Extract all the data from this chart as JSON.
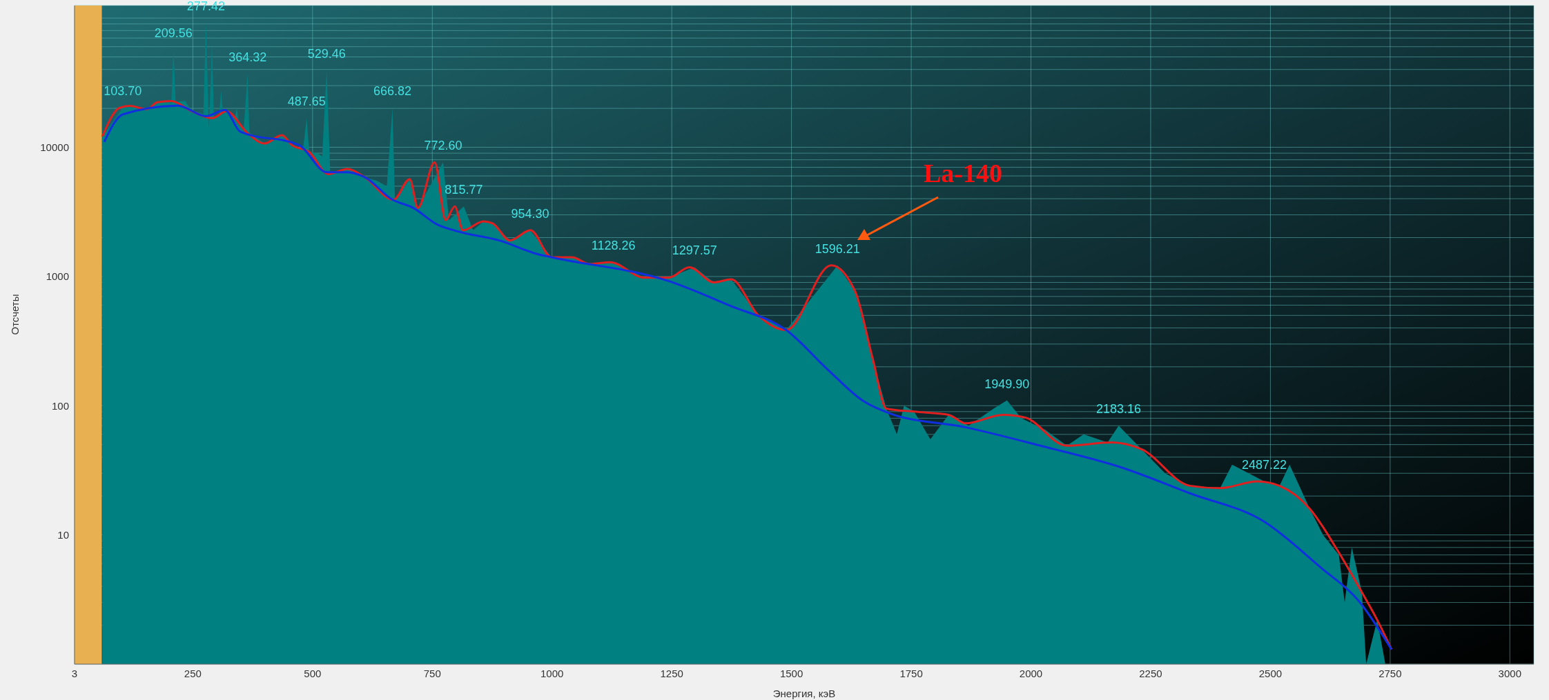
{
  "chart_data": {
    "type": "area",
    "xlabel": "Энергия, кэВ",
    "ylabel": "Отсчеты",
    "log": "y",
    "grid": true,
    "xlim": [
      3,
      3050
    ],
    "xticks": [
      3,
      250,
      500,
      750,
      1000,
      1250,
      1500,
      1750,
      2000,
      2250,
      2500,
      2750,
      3000
    ],
    "ylim": [
      1,
      125000
    ],
    "yticks": [
      {
        "value": 2,
        "label": null
      },
      {
        "value": 3,
        "label": null
      },
      {
        "value": 4,
        "label": null
      },
      {
        "value": 5,
        "label": null
      },
      {
        "value": 6,
        "label": null
      },
      {
        "value": 7,
        "label": null
      },
      {
        "value": 8,
        "label": null
      },
      {
        "value": 9,
        "label": null
      },
      10,
      {
        "value": 20,
        "label": null
      },
      {
        "value": 30,
        "label": null
      },
      {
        "value": 40,
        "label": null
      },
      {
        "value": 50,
        "label": null
      },
      {
        "value": 60,
        "label": null
      },
      {
        "value": 70,
        "label": null
      },
      {
        "value": 80,
        "label": null
      },
      {
        "value": 90,
        "label": null
      },
      100,
      {
        "value": 200,
        "label": null
      },
      {
        "value": 300,
        "label": null
      },
      {
        "value": 400,
        "label": null
      },
      {
        "value": 500,
        "label": null
      },
      {
        "value": 600,
        "label": null
      },
      {
        "value": 700,
        "label": null
      },
      {
        "value": 800,
        "label": null
      },
      {
        "value": 900,
        "label": null
      },
      1000,
      {
        "value": 2000,
        "label": null
      },
      {
        "value": 3000,
        "label": null
      },
      {
        "value": 4000,
        "label": null
      },
      {
        "value": 5000,
        "label": null
      },
      {
        "value": 6000,
        "label": null
      },
      {
        "value": 7000,
        "label": null
      },
      {
        "value": 8000,
        "label": null
      },
      {
        "value": 9000,
        "label": null
      },
      10000,
      {
        "value": 20000,
        "label": null
      },
      {
        "value": 30000,
        "label": null
      },
      {
        "value": 40000,
        "label": null
      },
      {
        "value": 50000,
        "label": null
      },
      {
        "value": 60000,
        "label": null
      },
      {
        "value": 70000,
        "label": null
      },
      {
        "value": 80000,
        "label": null
      },
      {
        "value": 90000,
        "label": null
      },
      {
        "value": 100000,
        "label": null
      }
    ],
    "bands": [
      {
        "axis": "x",
        "from": 3,
        "to": 60,
        "color": "#e8b050"
      }
    ],
    "series": [
      {
        "color": "#008080",
        "x": [
          61,
          103.7,
          118,
          154,
          176,
          200,
          205,
          209.56,
          214,
          234,
          248,
          265,
          272,
          277.42,
          283.5,
          290,
          294,
          297,
          305,
          309,
          313,
          320,
          338,
          342,
          346,
          356,
          364.32,
          368,
          400,
          436,
          457,
          470,
          480,
          487.65,
          493,
          510,
          520,
          529.46,
          537,
          573,
          609,
          635,
          655,
          666.82,
          672,
          703,
          720,
          772.6,
          785,
          815.77,
          835,
          857,
          876,
          912,
          954.3,
          999,
          1042,
          1078,
          1128.26,
          1193,
          1244,
          1297.57,
          1338,
          1374,
          1431,
          1489,
          1596.21,
          1633,
          1670,
          1698,
          1720,
          1735,
          1756,
          1790,
          1828,
          1870,
          1922,
          1949.9,
          1980,
          2030,
          2075,
          2110,
          2160,
          2183.16,
          2231,
          2280,
          2332,
          2395,
          2420,
          2487.22,
          2519,
          2540,
          2582,
          2610,
          2643,
          2655,
          2670,
          2691,
          2700,
          2723,
          2740
        ],
        "values": [
          12100,
          20200,
          20900,
          19700,
          22300,
          22800,
          22000,
          56600,
          22500,
          22800,
          19000,
          18500,
          18000,
          91800,
          14000,
          63800,
          17000,
          16800,
          18000,
          27300,
          18500,
          19000,
          17000,
          20200,
          15000,
          13500,
          37000,
          13000,
          10700,
          12400,
          10400,
          10000,
          9600,
          16800,
          9200,
          9000,
          8500,
          39300,
          6200,
          6800,
          5870,
          5500,
          5000,
          20200,
          3930,
          5660,
          3400,
          7660,
          2730,
          3490,
          2280,
          2670,
          2580,
          1900,
          2280,
          1410,
          1410,
          1250,
          1290,
          980,
          980,
          1180,
          900,
          950,
          500,
          385,
          1220,
          765,
          228,
          95,
          60,
          100,
          90,
          55,
          85,
          70,
          95,
          110,
          80,
          65,
          49,
          60,
          52,
          70,
          46,
          30,
          24,
          23,
          35,
          26,
          24,
          35,
          16,
          10,
          7,
          3,
          8,
          3.6,
          1,
          2.2,
          1
        ]
      },
      {
        "type": "line",
        "color": "#e02020",
        "x": [
          61,
          97,
          118,
          154,
          176,
          205,
          248,
          291,
          320,
          364,
          400,
          436,
          457,
          493,
          533,
          573,
          609,
          669,
          703,
          720,
          755,
          778,
          797,
          814,
          857,
          876,
          912,
          955,
          999,
          1042,
          1078,
          1121,
          1193,
          1244,
          1287,
          1338,
          1374,
          1431,
          1489,
          1583,
          1633,
          1670,
          1698,
          1756,
          1828,
          1864,
          1942,
          1988,
          2075,
          2169,
          2231,
          2332,
          2395,
          2473,
          2519,
          2582,
          2643,
          2691,
          2723,
          2753
        ],
        "values": [
          12100,
          20200,
          20900,
          19700,
          22300,
          22800,
          19000,
          16800,
          19000,
          12900,
          10700,
          12400,
          10400,
          9200,
          6200,
          6800,
          5870,
          3930,
          5660,
          3400,
          7660,
          2730,
          3490,
          2280,
          2670,
          2580,
          1900,
          2280,
          1410,
          1410,
          1250,
          1290,
          980,
          980,
          1180,
          900,
          950,
          500,
          385,
          1220,
          765,
          228,
          95,
          90,
          85,
          73,
          85,
          81,
          49,
          52,
          46,
          24,
          23,
          26,
          24,
          16,
          7.3,
          3.6,
          2.2,
          1.3
        ]
      },
      {
        "type": "line",
        "color": "#1030e0",
        "x": [
          65,
          104,
          219,
          277,
          317,
          349,
          472,
          530,
          573,
          609,
          667,
          710,
          760,
          804,
          890,
          970,
          999,
          1244,
          1374,
          1489,
          1576,
          1648,
          1706,
          1864,
          2020,
          2192,
          2332,
          2488,
          2605,
          2684,
          2753
        ],
        "values": [
          11000,
          18000,
          21000,
          17400,
          19400,
          13200,
          10400,
          6400,
          6400,
          5870,
          3930,
          3400,
          2530,
          2230,
          1900,
          1490,
          1410,
          920,
          590,
          385,
          190,
          110,
          87,
          68,
          49,
          33,
          21,
          12.6,
          5.6,
          3.1,
          1.3
        ]
      }
    ],
    "annotations": [
      {
        "text": "103.70",
        "x": 103.7,
        "y": 20200
      },
      {
        "text": "209.56",
        "x": 209.56,
        "y": 56600
      },
      {
        "text": "277.42",
        "x": 277.42,
        "y": 91800
      },
      {
        "text": "364.32",
        "x": 364.32,
        "y": 37000
      },
      {
        "text": "487.65",
        "x": 487.65,
        "y": 16800
      },
      {
        "text": "529.46",
        "x": 529.46,
        "y": 39300
      },
      {
        "text": "666.82",
        "x": 666.82,
        "y": 20200
      },
      {
        "text": "772.60",
        "x": 772.6,
        "y": 7660
      },
      {
        "text": "815.77",
        "x": 815.77,
        "y": 3490
      },
      {
        "text": "954.30",
        "x": 954.3,
        "y": 2280
      },
      {
        "text": "1128.26",
        "x": 1128.26,
        "y": 1290
      },
      {
        "text": "1297.57",
        "x": 1297.57,
        "y": 1180
      },
      {
        "text": "1596.21",
        "x": 1596.21,
        "y": 1220
      },
      {
        "text": "1949.90",
        "x": 1949.9,
        "y": 110
      },
      {
        "text": "2183.16",
        "x": 2183.16,
        "y": 70
      },
      {
        "text": "2487.22",
        "x": 2487.22,
        "y": 26
      },
      "La-140"
    ]
  }
}
